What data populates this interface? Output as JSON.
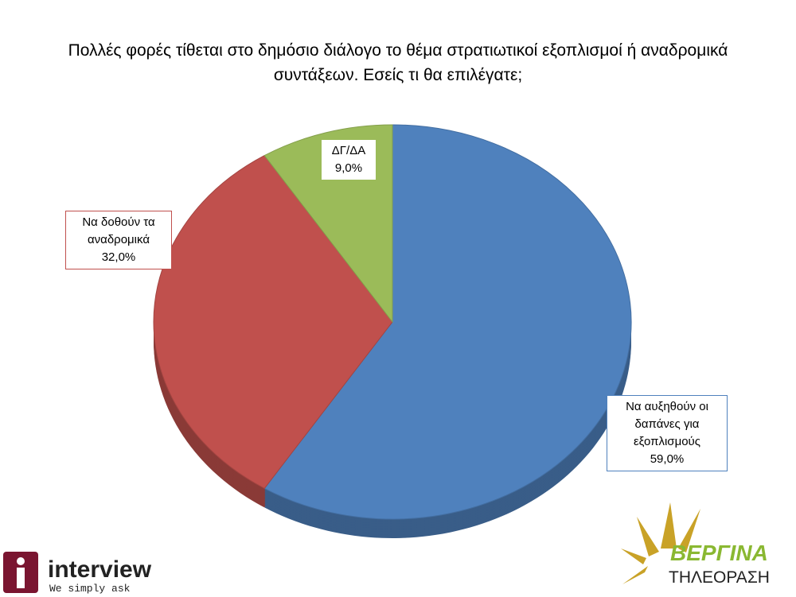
{
  "chart_data": {
    "type": "pie",
    "title": "Πολλές φορές τίθεται στο δημόσιο διάλογο το θέμα στρατιωτικοί εξοπλισμοί ή αναδρομικά συντάξεων. Εσείς  τι θα επιλέγατε;",
    "categories": [
      "Να αυξηθούν οι δαπάνες για εξοπλισμούς",
      "Να δοθούν τα αναδρομικά",
      "ΔΓ/ΔΑ"
    ],
    "values": [
      59,
      32,
      9
    ],
    "value_labels": [
      "59,0%",
      "32,0%",
      "9,0%"
    ],
    "colors": [
      "#4f81bd",
      "#c0504d",
      "#9bbb59"
    ]
  },
  "logos": {
    "left": "interview",
    "left_tagline": "We simply ask",
    "right": "ΒΕΡΓΙΝΑ",
    "right_sub": "ΤΗΛΕΟΡΑΣΗ"
  }
}
